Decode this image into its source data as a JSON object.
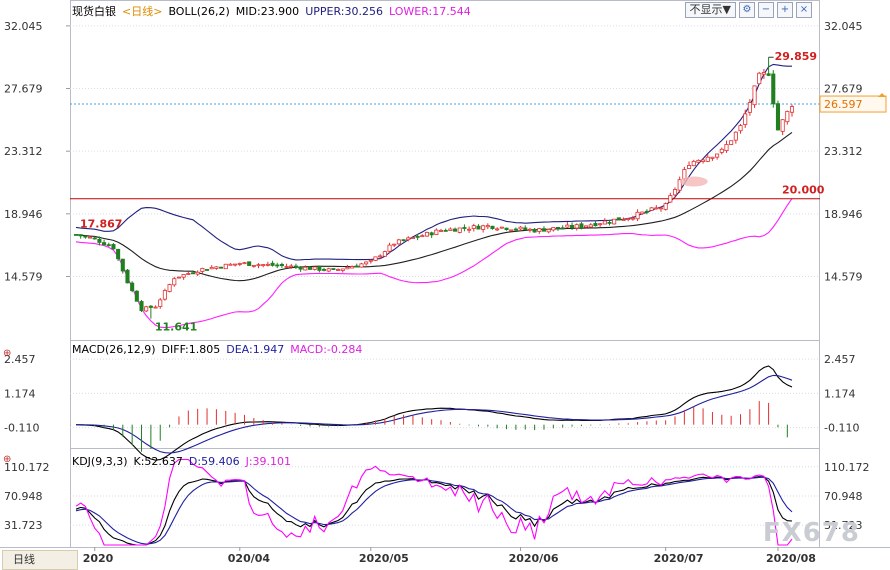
{
  "header": {
    "instrument": "现货白银",
    "period": "<日线>",
    "boll_name": "BOLL(26,2)",
    "mid": "MID:23.900",
    "upper": "UPPER:30.256",
    "lower": "LOWER:17.544",
    "hide_label": "不显示▼"
  },
  "macd_header": {
    "name": "MACD(26,12,9)",
    "diff": "DIFF:1.805",
    "dea": "DEA:1.947",
    "macd": "MACD:-0.284"
  },
  "kdj_header": {
    "name": "KDJ(9,3,3)",
    "k": "K:52.637",
    "d": "D:59.406",
    "j": "J:39.101"
  },
  "period_tab": "日线",
  "watermark": "FX678",
  "colors": {
    "up": "#e03030",
    "down": "#208020",
    "upper": "#202080",
    "mid": "#202020",
    "lower": "#ff20ff",
    "diff": "#000000",
    "dea": "#2020a0",
    "j": "#ff00ff",
    "hline": "#c00000",
    "current": "#40a0e0"
  },
  "chart_data": [
    {
      "type": "candlestick",
      "yticks": [
        "32.045",
        "27.679",
        "23.312",
        "18.946",
        "14.579"
      ],
      "ylim": [
        10.5,
        33.5
      ],
      "xticks": [
        "2020",
        "020/04",
        "2020/05",
        "2020/06",
        "2020/07",
        "2020/08"
      ],
      "annotations": {
        "high": "29.859",
        "low": "11.641",
        "start": "17.867",
        "level": "20.000",
        "current": "26.597"
      },
      "current_price": 26.597,
      "level_line": 20.0,
      "monthly_anchors": [
        {
          "i": 0,
          "close": 17.5
        },
        {
          "i": 4,
          "close": 17.2
        },
        {
          "i": 8,
          "close": 16.6
        },
        {
          "i": 11,
          "close": 14.2
        },
        {
          "i": 14,
          "close": 12.3
        },
        {
          "i": 17,
          "close": 12.5
        },
        {
          "i": 21,
          "close": 14.5
        },
        {
          "i": 27,
          "close": 15.1
        },
        {
          "i": 35,
          "close": 15.5
        },
        {
          "i": 45,
          "close": 15.3
        },
        {
          "i": 55,
          "close": 15.0
        },
        {
          "i": 63,
          "close": 15.6
        },
        {
          "i": 68,
          "close": 16.9
        },
        {
          "i": 78,
          "close": 17.8
        },
        {
          "i": 88,
          "close": 18.1
        },
        {
          "i": 98,
          "close": 17.8
        },
        {
          "i": 108,
          "close": 18.1
        },
        {
          "i": 118,
          "close": 18.7
        },
        {
          "i": 126,
          "close": 19.5
        },
        {
          "i": 131,
          "close": 22.5
        },
        {
          "i": 138,
          "close": 23.3
        },
        {
          "i": 142,
          "close": 25.0
        },
        {
          "i": 146,
          "close": 28.5
        },
        {
          "i": 148,
          "close": 28.8
        },
        {
          "i": 150,
          "close": 24.8
        },
        {
          "i": 153,
          "close": 26.6
        }
      ]
    },
    {
      "type": "macd",
      "yticks": [
        "2.457",
        "1.174",
        "-0.110"
      ],
      "ylim": [
        -0.8,
        2.8
      ],
      "diff": 1.805,
      "dea": 1.947,
      "macd": -0.284
    },
    {
      "type": "kdj",
      "yticks": [
        "110.172",
        "70.948",
        "31.723"
      ],
      "ylim": [
        5,
        122
      ],
      "k": 52.637,
      "d": 59.406,
      "j": 39.101
    }
  ]
}
